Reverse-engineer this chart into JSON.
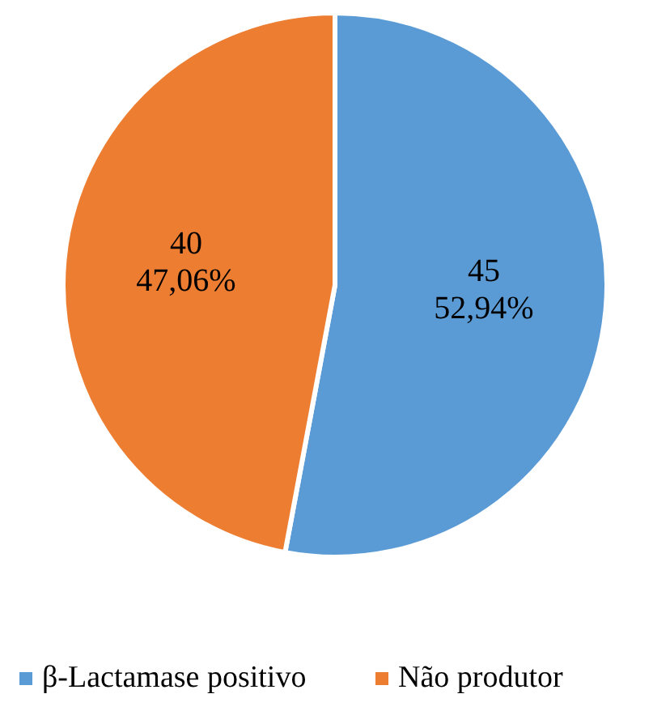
{
  "chart_data": {
    "type": "pie",
    "categories": [
      "β-Lactamase positivo",
      "Não produtor"
    ],
    "values": [
      45,
      40
    ],
    "colors": [
      "#5b9bd5",
      "#ed7d31"
    ],
    "value_labels": [
      "45\n52,94%",
      "40\n47,06%"
    ],
    "legend": "bottom"
  }
}
